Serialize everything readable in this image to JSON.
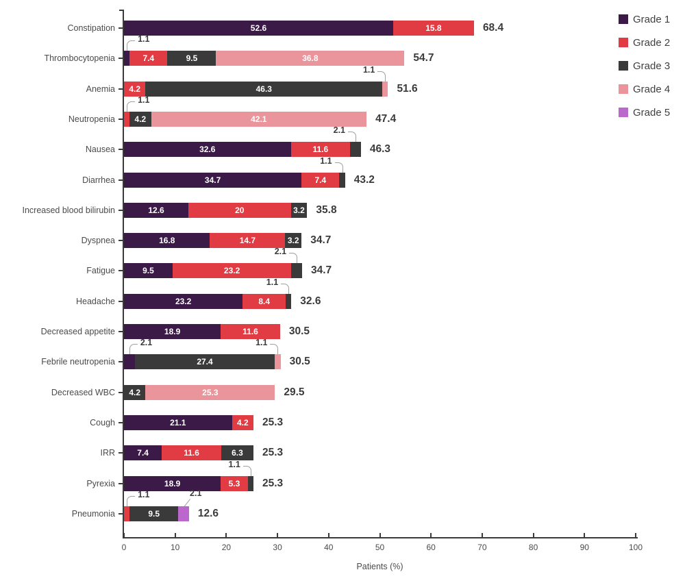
{
  "chart_data": {
    "type": "bar",
    "orientation": "horizontal",
    "stacked": true,
    "xlabel": "Patients (%)",
    "xlim": [
      0,
      100
    ],
    "xticks": [
      "0",
      "10",
      "20",
      "30",
      "40",
      "50",
      "60",
      "70",
      "80",
      "90",
      "100"
    ],
    "grid": false,
    "legend_position": "top-right",
    "legend": [
      {
        "label": "Grade 1",
        "color": "#3b1a47"
      },
      {
        "label": "Grade 2",
        "color": "#e13b43"
      },
      {
        "label": "Grade 3",
        "color": "#3a3a3a"
      },
      {
        "label": "Grade 4",
        "color": "#e9959b"
      },
      {
        "label": "Grade 5",
        "color": "#ba68cc"
      }
    ],
    "rows": [
      {
        "category": "Constipation",
        "total": "68.4",
        "segments": [
          {
            "grade": "Grade 1",
            "value": 52.6,
            "label": "52.6"
          },
          {
            "grade": "Grade 2",
            "value": 15.8,
            "label": "15.8"
          }
        ]
      },
      {
        "category": "Thrombocytopenia",
        "total": "54.7",
        "segments": [
          {
            "grade": "Grade 1",
            "value": 1.1,
            "label": "1.1",
            "callout": "left"
          },
          {
            "grade": "Grade 2",
            "value": 7.4,
            "label": "7.4"
          },
          {
            "grade": "Grade 3",
            "value": 9.5,
            "label": "9.5"
          },
          {
            "grade": "Grade 4",
            "value": 36.8,
            "label": "36.8"
          }
        ]
      },
      {
        "category": "Anemia",
        "total": "51.6",
        "segments": [
          {
            "grade": "Grade 2",
            "value": 4.2,
            "label": "4.2"
          },
          {
            "grade": "Grade 3",
            "value": 46.3,
            "label": "46.3"
          },
          {
            "grade": "Grade 4",
            "value": 1.1,
            "label": "1.1",
            "callout": "right"
          }
        ]
      },
      {
        "category": "Neutropenia",
        "total": "47.4",
        "segments": [
          {
            "grade": "Grade 2",
            "value": 1.1,
            "label": "1.1",
            "callout": "left"
          },
          {
            "grade": "Grade 3",
            "value": 4.2,
            "label": "4.2"
          },
          {
            "grade": "Grade 4",
            "value": 42.1,
            "label": "42.1"
          }
        ]
      },
      {
        "category": "Nausea",
        "total": "46.3",
        "segments": [
          {
            "grade": "Grade 1",
            "value": 32.6,
            "label": "32.6"
          },
          {
            "grade": "Grade 2",
            "value": 11.6,
            "label": "11.6"
          },
          {
            "grade": "Grade 3",
            "value": 2.1,
            "label": "2.1",
            "callout": "right"
          }
        ]
      },
      {
        "category": "Diarrhea",
        "total": "43.2",
        "segments": [
          {
            "grade": "Grade 1",
            "value": 34.7,
            "label": "34.7"
          },
          {
            "grade": "Grade 2",
            "value": 7.4,
            "label": "7.4"
          },
          {
            "grade": "Grade 3",
            "value": 1.1,
            "label": "1.1",
            "callout": "right"
          }
        ]
      },
      {
        "category": "Increased blood bilirubin",
        "total": "35.8",
        "segments": [
          {
            "grade": "Grade 1",
            "value": 12.6,
            "label": "12.6"
          },
          {
            "grade": "Grade 2",
            "value": 20,
            "label": "20"
          },
          {
            "grade": "Grade 3",
            "value": 3.2,
            "label": "3.2"
          }
        ]
      },
      {
        "category": "Dyspnea",
        "total": "34.7",
        "segments": [
          {
            "grade": "Grade 1",
            "value": 16.8,
            "label": "16.8"
          },
          {
            "grade": "Grade 2",
            "value": 14.7,
            "label": "14.7"
          },
          {
            "grade": "Grade 3",
            "value": 3.2,
            "label": "3.2"
          }
        ]
      },
      {
        "category": "Fatigue",
        "total": "34.7",
        "segments": [
          {
            "grade": "Grade 1",
            "value": 9.5,
            "label": "9.5"
          },
          {
            "grade": "Grade 2",
            "value": 23.2,
            "label": "23.2"
          },
          {
            "grade": "Grade 3",
            "value": 2.1,
            "label": "2.1",
            "callout": "right"
          }
        ]
      },
      {
        "category": "Headache",
        "total": "32.6",
        "segments": [
          {
            "grade": "Grade 1",
            "value": 23.2,
            "label": "23.2"
          },
          {
            "grade": "Grade 2",
            "value": 8.4,
            "label": "8.4"
          },
          {
            "grade": "Grade 3",
            "value": 1.1,
            "label": "1.1",
            "callout": "right"
          }
        ]
      },
      {
        "category": "Decreased appetite",
        "total": "30.5",
        "segments": [
          {
            "grade": "Grade 1",
            "value": 18.9,
            "label": "18.9"
          },
          {
            "grade": "Grade 2",
            "value": 11.6,
            "label": "11.6"
          }
        ]
      },
      {
        "category": "Febrile neutropenia",
        "total": "30.5",
        "segments": [
          {
            "grade": "Grade 1",
            "value": 2.1,
            "label": "2.1",
            "callout": "left"
          },
          {
            "grade": "Grade 3",
            "value": 27.4,
            "label": "27.4"
          },
          {
            "grade": "Grade 4",
            "value": 1.1,
            "label": "1.1",
            "callout": "right"
          }
        ]
      },
      {
        "category": "Decreased WBC",
        "total": "29.5",
        "segments": [
          {
            "grade": "Grade 3",
            "value": 4.2,
            "label": "4.2"
          },
          {
            "grade": "Grade 4",
            "value": 25.3,
            "label": "25.3"
          }
        ]
      },
      {
        "category": "Cough",
        "total": "25.3",
        "segments": [
          {
            "grade": "Grade 1",
            "value": 21.1,
            "label": "21.1"
          },
          {
            "grade": "Grade 2",
            "value": 4.2,
            "label": "4.2"
          }
        ]
      },
      {
        "category": "IRR",
        "total": "25.3",
        "segments": [
          {
            "grade": "Grade 1",
            "value": 7.4,
            "label": "7.4"
          },
          {
            "grade": "Grade 2",
            "value": 11.6,
            "label": "11.6"
          },
          {
            "grade": "Grade 3",
            "value": 6.3,
            "label": "6.3"
          }
        ]
      },
      {
        "category": "Pyrexia",
        "total": "25.3",
        "segments": [
          {
            "grade": "Grade 1",
            "value": 18.9,
            "label": "18.9"
          },
          {
            "grade": "Grade 2",
            "value": 5.3,
            "label": "5.3"
          },
          {
            "grade": "Grade 3",
            "value": 1.1,
            "label": "1.1",
            "callout": "right"
          }
        ]
      },
      {
        "category": "Pneumonia",
        "total": "12.6",
        "segments": [
          {
            "grade": "Grade 2",
            "value": 1.1,
            "label": "1.1",
            "callout": "left"
          },
          {
            "grade": "Grade 3",
            "value": 9.5,
            "label": "9.5"
          },
          {
            "grade": "Grade 5",
            "value": 2.1,
            "label": "2.1",
            "callout": "slant"
          }
        ]
      }
    ]
  }
}
